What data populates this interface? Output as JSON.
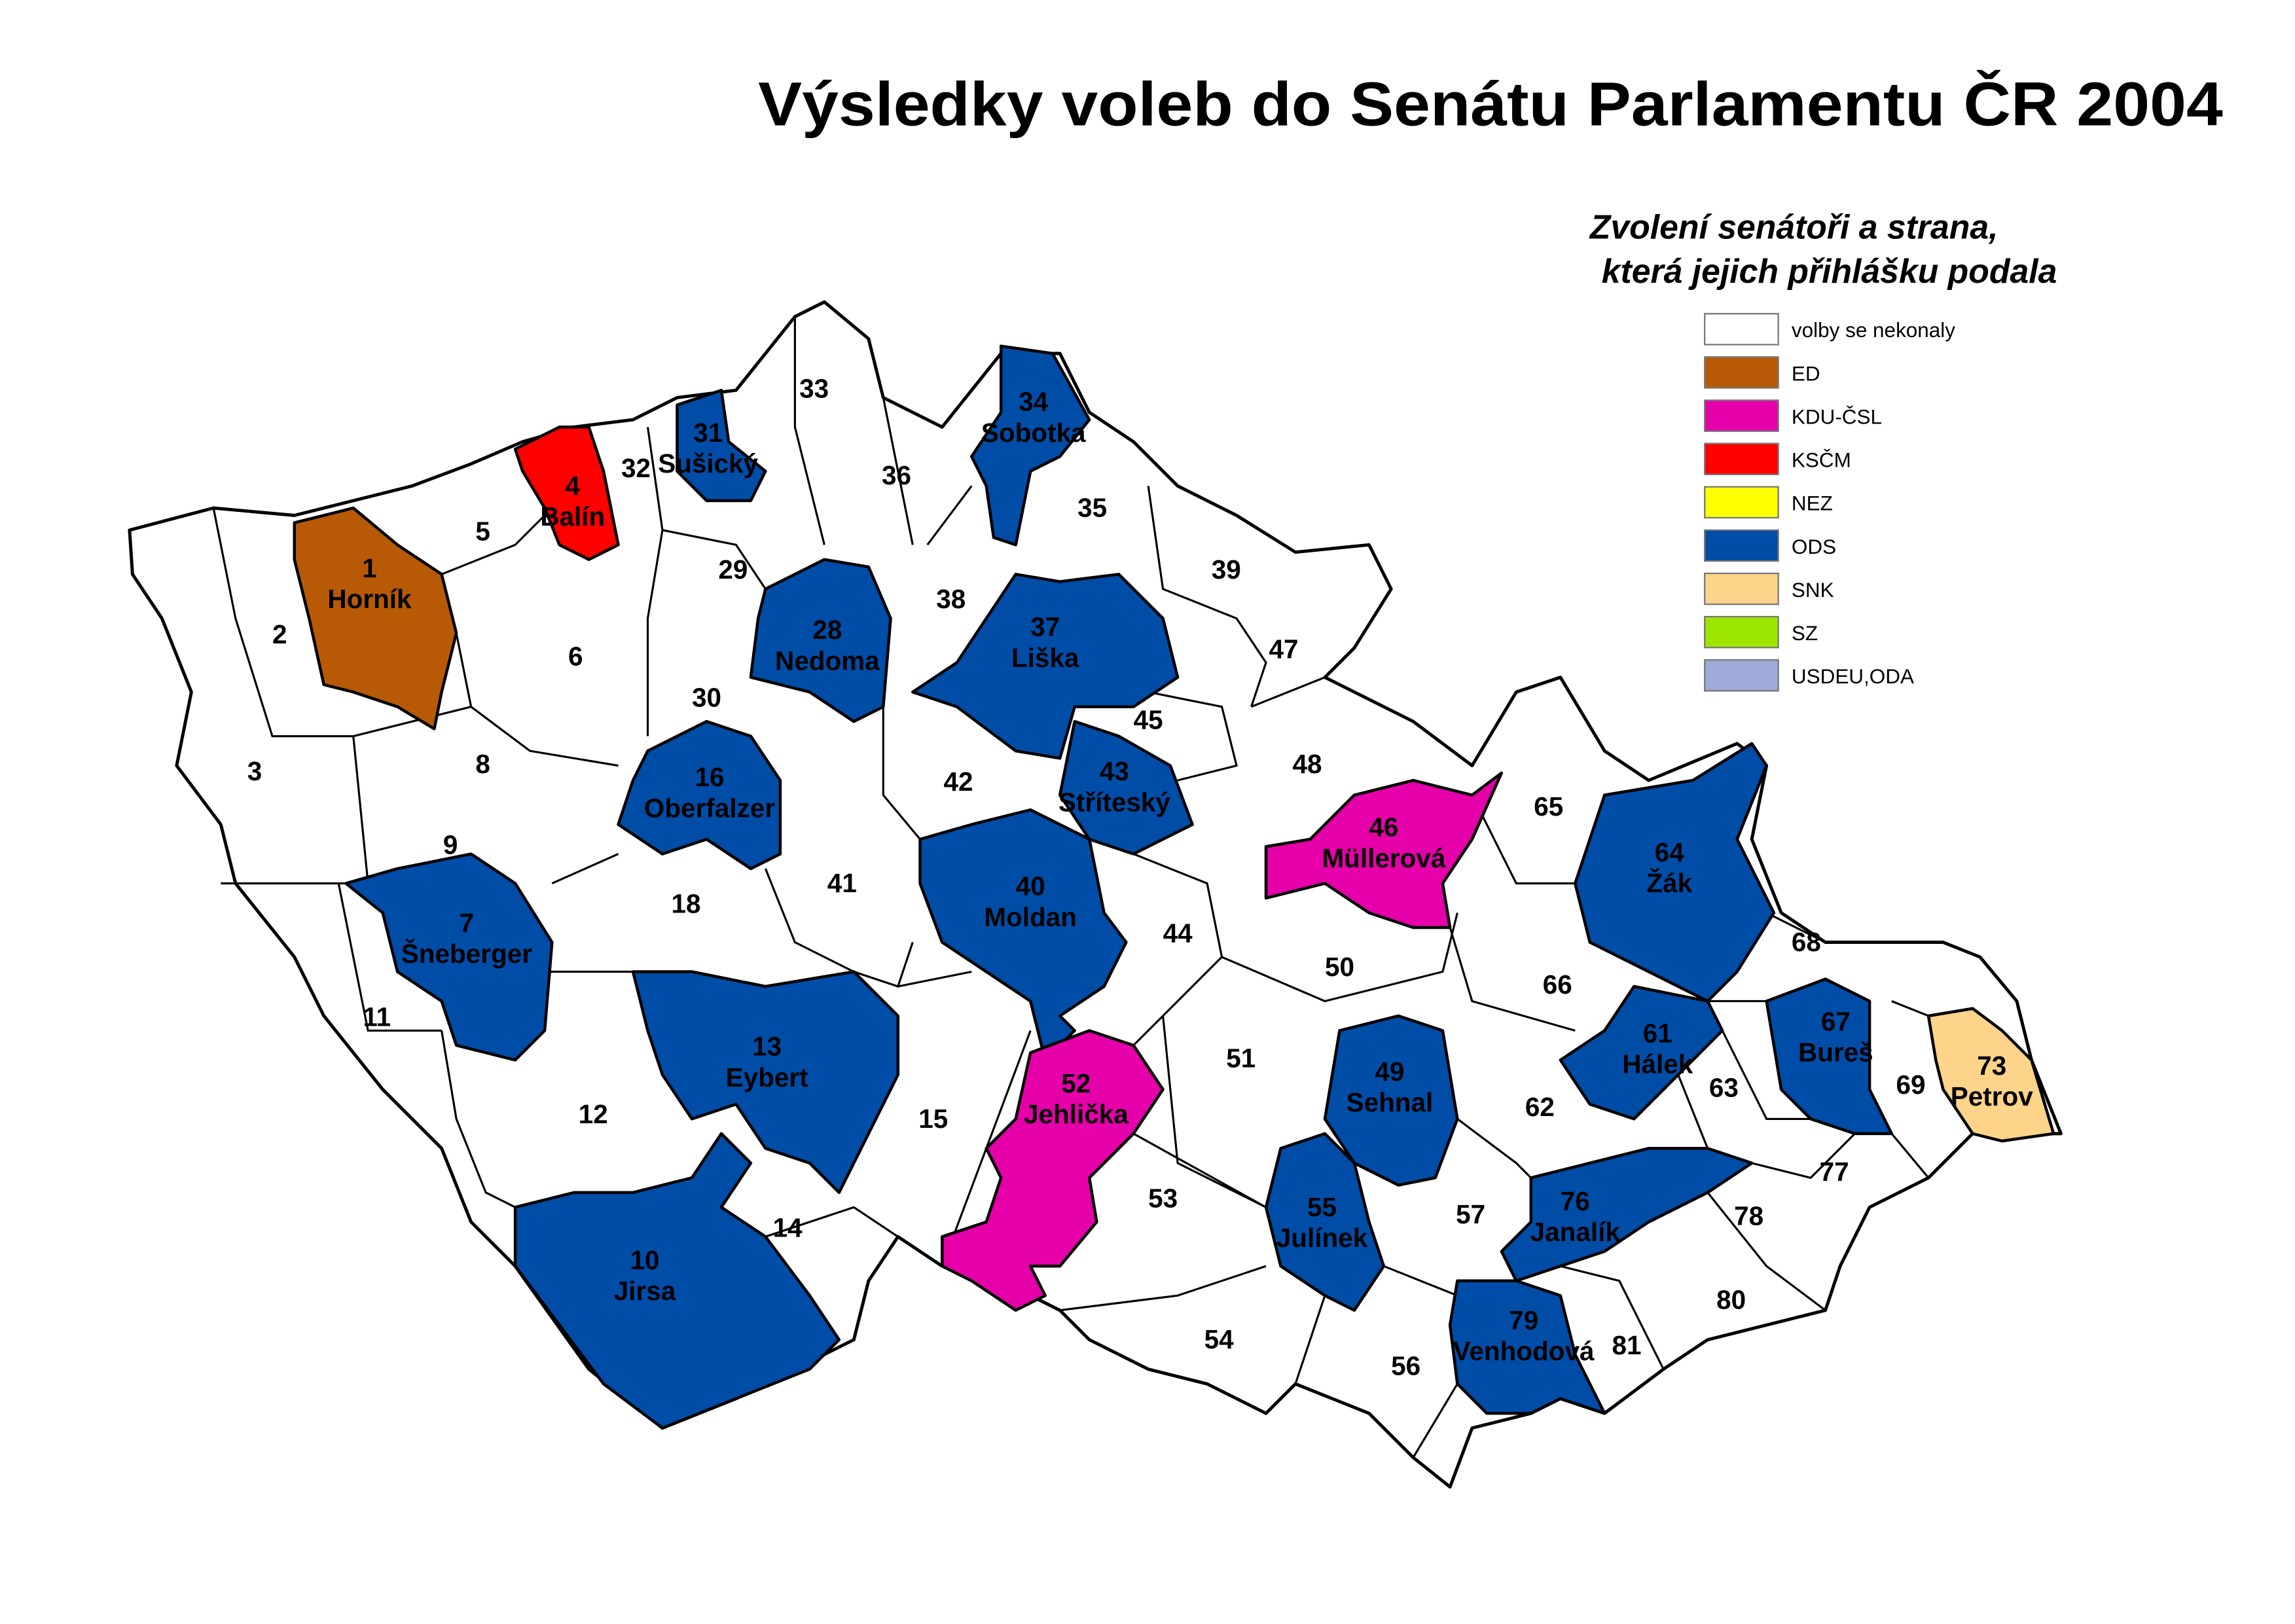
{
  "title": "Výsledky voleb do Senátu Parlamentu ČR 2004",
  "legend": {
    "title_line1": "Zvolení senátoři a strana,",
    "title_line2": "která jejich přihlášku podala",
    "items": [
      {
        "label": "volby se nekonaly",
        "color": "#FFFFFF"
      },
      {
        "label": "ED",
        "color": "#B85A05"
      },
      {
        "label": "KDU-ČSL",
        "color": "#E600A9"
      },
      {
        "label": "KSČM",
        "color": "#FF0000"
      },
      {
        "label": "NEZ",
        "color": "#FFFF00"
      },
      {
        "label": "ODS",
        "color": "#004DA8"
      },
      {
        "label": "SNK",
        "color": "#FED38A"
      },
      {
        "label": "SZ",
        "color": "#9CE600"
      },
      {
        "label": "USDEU,ODA",
        "color": "#9EAAD7"
      }
    ]
  },
  "districts": [
    {
      "number": "1",
      "senator": "Horník",
      "party": "ED"
    },
    {
      "number": "4",
      "senator": "Balín",
      "party": "KSČM"
    },
    {
      "number": "7",
      "senator": "Šneberger",
      "party": "ODS"
    },
    {
      "number": "10",
      "senator": "Jirsa",
      "party": "ODS"
    },
    {
      "number": "13",
      "senator": "Eybert",
      "party": "ODS"
    },
    {
      "number": "16",
      "senator": "Oberfalzer",
      "party": "ODS"
    },
    {
      "number": "28",
      "senator": "Nedoma",
      "party": "ODS"
    },
    {
      "number": "31",
      "senator": "Sušický",
      "party": "ODS"
    },
    {
      "number": "34",
      "senator": "Sobotka",
      "party": "ODS"
    },
    {
      "number": "37",
      "senator": "Liška",
      "party": "ODS"
    },
    {
      "number": "40",
      "senator": "Moldan",
      "party": "ODS"
    },
    {
      "number": "43",
      "senator": "Stříteský",
      "party": "ODS"
    },
    {
      "number": "46",
      "senator": "Müllerová",
      "party": "KDU-ČSL"
    },
    {
      "number": "49",
      "senator": "Sehnal",
      "party": "ODS"
    },
    {
      "number": "52",
      "senator": "Jehlička",
      "party": "KDU-ČSL"
    },
    {
      "number": "55",
      "senator": "Julínek",
      "party": "ODS"
    },
    {
      "number": "61",
      "senator": "Hálek",
      "party": "ODS"
    },
    {
      "number": "64",
      "senator": "Žák",
      "party": "ODS"
    },
    {
      "number": "67",
      "senator": "Bureš",
      "party": "ODS"
    },
    {
      "number": "73",
      "senator": "Petrov",
      "party": "SNK"
    },
    {
      "number": "76",
      "senator": "Janalík",
      "party": "ODS"
    },
    {
      "number": "79",
      "senator": "Venhodová",
      "party": "ODS"
    }
  ],
  "other_districts": [
    "2",
    "3",
    "5",
    "6",
    "8",
    "9",
    "11",
    "12",
    "14",
    "15",
    "18",
    "29",
    "30",
    "32",
    "33",
    "35",
    "36",
    "38",
    "39",
    "41",
    "42",
    "44",
    "45",
    "47",
    "48",
    "50",
    "51",
    "53",
    "54",
    "56",
    "57",
    "62",
    "63",
    "65",
    "66",
    "68",
    "69",
    "77",
    "78",
    "80",
    "81"
  ]
}
